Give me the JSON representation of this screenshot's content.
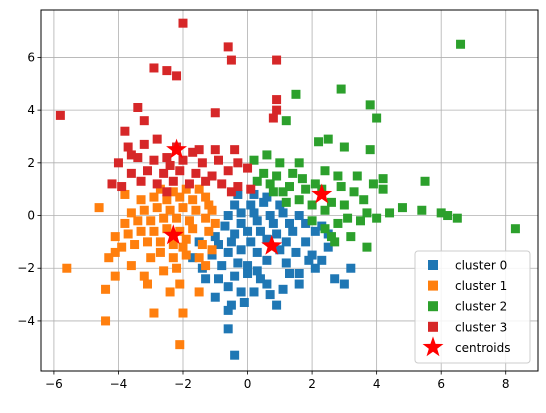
{
  "chart_data": {
    "type": "scatter",
    "xlim": [
      -6.4,
      9.0
    ],
    "ylim": [
      -5.9,
      7.8
    ],
    "x_ticks": [
      -6,
      -4,
      -2,
      0,
      2,
      4,
      6,
      8
    ],
    "y_ticks": [
      -4,
      -2,
      0,
      2,
      4,
      6
    ],
    "grid": true,
    "legend_placement": "lower-right",
    "marker": "square",
    "series": [
      {
        "name": "cluster 0",
        "color": "#1f77b4",
        "points": [
          [
            -0.4,
            -5.3
          ],
          [
            -0.6,
            -4.3
          ],
          [
            -0.6,
            -3.6
          ],
          [
            -0.1,
            -3.3
          ],
          [
            -0.2,
            -2.9
          ],
          [
            0.2,
            -2.9
          ],
          [
            0.7,
            -3.0
          ],
          [
            1.1,
            -2.8
          ],
          [
            0.6,
            -2.6
          ],
          [
            -1.3,
            -2.4
          ],
          [
            -0.9,
            -2.4
          ],
          [
            -0.4,
            -2.3
          ],
          [
            0.0,
            -2.2
          ],
          [
            0.3,
            -2.1
          ],
          [
            1.3,
            -2.2
          ],
          [
            1.6,
            -2.2
          ],
          [
            2.7,
            -2.4
          ],
          [
            3.0,
            -2.6
          ],
          [
            3.2,
            -2.0
          ],
          [
            -0.8,
            -1.9
          ],
          [
            -0.3,
            -1.8
          ],
          [
            0.0,
            -1.9
          ],
          [
            0.6,
            -1.7
          ],
          [
            1.2,
            -1.8
          ],
          [
            1.9,
            -1.7
          ],
          [
            2.3,
            -1.7
          ],
          [
            -1.1,
            -1.5
          ],
          [
            -0.6,
            -1.4
          ],
          [
            -0.2,
            -1.3
          ],
          [
            0.3,
            -1.4
          ],
          [
            1.0,
            -1.3
          ],
          [
            1.5,
            -1.4
          ],
          [
            2.0,
            -1.5
          ],
          [
            -0.9,
            -1.1
          ],
          [
            -0.5,
            -1.0
          ],
          [
            0.1,
            -1.0
          ],
          [
            0.6,
            -0.9
          ],
          [
            1.2,
            -1.0
          ],
          [
            1.8,
            -1.0
          ],
          [
            -1.0,
            -0.8
          ],
          [
            -0.4,
            -0.7
          ],
          [
            0.0,
            -0.6
          ],
          [
            0.4,
            -0.6
          ],
          [
            0.9,
            -0.7
          ],
          [
            1.4,
            -0.6
          ],
          [
            2.1,
            -0.6
          ],
          [
            2.5,
            -0.7
          ],
          [
            -0.7,
            -0.4
          ],
          [
            -0.2,
            -0.3
          ],
          [
            0.3,
            -0.2
          ],
          [
            0.8,
            -0.3
          ],
          [
            1.3,
            -0.3
          ],
          [
            1.8,
            -0.3
          ],
          [
            2.3,
            -0.4
          ],
          [
            -0.6,
            0.0
          ],
          [
            -0.2,
            0.1
          ],
          [
            0.2,
            0.1
          ],
          [
            0.7,
            0.0
          ],
          [
            1.1,
            0.1
          ],
          [
            1.6,
            0.0
          ],
          [
            -0.4,
            0.4
          ],
          [
            0.1,
            0.4
          ],
          [
            0.5,
            0.5
          ],
          [
            1.0,
            0.4
          ],
          [
            -0.3,
            0.8
          ],
          [
            0.2,
            0.8
          ],
          [
            0.6,
            0.7
          ],
          [
            -1.5,
            -1.0
          ],
          [
            -1.7,
            -1.6
          ],
          [
            -1.4,
            -2.0
          ],
          [
            -1.0,
            -3.1
          ],
          [
            -0.5,
            -3.4
          ],
          [
            0.9,
            -3.4
          ],
          [
            2.1,
            -2.0
          ],
          [
            2.5,
            -1.2
          ],
          [
            1.6,
            -2.6
          ],
          [
            0.4,
            -2.4
          ],
          [
            -0.6,
            -2.7
          ]
        ]
      },
      {
        "name": "cluster 1",
        "color": "#ff7f0e",
        "points": [
          [
            -4.4,
            -4.0
          ],
          [
            -4.4,
            -2.8
          ],
          [
            -5.6,
            -2.0
          ],
          [
            -4.3,
            -1.6
          ],
          [
            -4.6,
            0.3
          ],
          [
            -4.1,
            -2.3
          ],
          [
            -2.9,
            -3.7
          ],
          [
            -2.2,
            -2.0
          ],
          [
            -2.1,
            -2.6
          ],
          [
            -2.1,
            -4.9
          ],
          [
            -2.0,
            -3.7
          ],
          [
            -1.5,
            -2.9
          ],
          [
            -2.6,
            -2.1
          ],
          [
            -3.2,
            -2.3
          ],
          [
            -3.6,
            -1.9
          ],
          [
            -3.0,
            -1.6
          ],
          [
            -2.7,
            -1.4
          ],
          [
            -2.3,
            -1.6
          ],
          [
            -1.9,
            -1.5
          ],
          [
            -1.5,
            -1.6
          ],
          [
            -3.9,
            -1.2
          ],
          [
            -3.5,
            -1.1
          ],
          [
            -3.1,
            -1.0
          ],
          [
            -2.7,
            -1.0
          ],
          [
            -2.3,
            -1.1
          ],
          [
            -1.9,
            -0.9
          ],
          [
            -1.4,
            -1.1
          ],
          [
            -4.1,
            -0.8
          ],
          [
            -3.7,
            -0.7
          ],
          [
            -3.3,
            -0.6
          ],
          [
            -2.9,
            -0.6
          ],
          [
            -2.5,
            -0.5
          ],
          [
            -2.1,
            -0.6
          ],
          [
            -1.7,
            -0.5
          ],
          [
            -1.2,
            -0.6
          ],
          [
            -3.8,
            -0.3
          ],
          [
            -3.4,
            -0.2
          ],
          [
            -3.0,
            -0.2
          ],
          [
            -2.6,
            -0.1
          ],
          [
            -2.2,
            -0.1
          ],
          [
            -1.8,
            -0.2
          ],
          [
            -1.3,
            -0.1
          ],
          [
            -3.6,
            0.1
          ],
          [
            -3.2,
            0.2
          ],
          [
            -2.8,
            0.3
          ],
          [
            -2.4,
            0.2
          ],
          [
            -2.0,
            0.3
          ],
          [
            -1.6,
            0.2
          ],
          [
            -1.1,
            0.2
          ],
          [
            -3.3,
            0.6
          ],
          [
            -2.9,
            0.7
          ],
          [
            -2.5,
            0.6
          ],
          [
            -2.1,
            0.7
          ],
          [
            -1.7,
            0.6
          ],
          [
            -1.3,
            0.7
          ],
          [
            -2.7,
            1.0
          ],
          [
            -2.3,
            0.9
          ],
          [
            -1.9,
            1.0
          ],
          [
            -1.5,
            1.0
          ],
          [
            -1.1,
            -1.3
          ],
          [
            -1.3,
            -1.9
          ],
          [
            -4.1,
            -1.4
          ],
          [
            -1.0,
            -0.3
          ],
          [
            -1.2,
            0.4
          ],
          [
            -3.1,
            -2.6
          ],
          [
            -2.4,
            -2.9
          ],
          [
            -2.0,
            -1.2
          ],
          [
            -3.8,
            0.8
          ]
        ]
      },
      {
        "name": "cluster 2",
        "color": "#2ca02c",
        "points": [
          [
            6.6,
            6.5
          ],
          [
            8.3,
            -0.5
          ],
          [
            6.0,
            0.1
          ],
          [
            6.2,
            0.0
          ],
          [
            6.5,
            -0.1
          ],
          [
            5.4,
            0.2
          ],
          [
            5.5,
            1.3
          ],
          [
            4.4,
            0.1
          ],
          [
            3.8,
            4.2
          ],
          [
            4.0,
            3.7
          ],
          [
            2.9,
            4.8
          ],
          [
            1.5,
            4.6
          ],
          [
            1.2,
            3.6
          ],
          [
            2.2,
            2.8
          ],
          [
            2.5,
            2.9
          ],
          [
            3.0,
            2.6
          ],
          [
            3.8,
            2.5
          ],
          [
            3.4,
            1.5
          ],
          [
            3.9,
            1.2
          ],
          [
            4.2,
            1.4
          ],
          [
            4.2,
            1.0
          ],
          [
            4.8,
            0.3
          ],
          [
            3.7,
            0.1
          ],
          [
            4.0,
            -0.1
          ],
          [
            3.2,
            -0.8
          ],
          [
            3.7,
            -1.2
          ],
          [
            2.7,
            -1.0
          ],
          [
            3.1,
            -0.1
          ],
          [
            2.6,
            0.5
          ],
          [
            2.9,
            1.1
          ],
          [
            3.3,
            0.9
          ],
          [
            2.1,
            1.2
          ],
          [
            1.7,
            1.4
          ],
          [
            1.3,
            1.1
          ],
          [
            0.9,
            1.5
          ],
          [
            0.5,
            1.6
          ],
          [
            0.2,
            2.1
          ],
          [
            0.6,
            2.3
          ],
          [
            1.0,
            2.0
          ],
          [
            1.6,
            2.0
          ],
          [
            2.4,
            1.7
          ],
          [
            2.8,
            1.5
          ],
          [
            3.6,
            0.6
          ],
          [
            2.4,
            0.2
          ],
          [
            2.0,
            0.4
          ],
          [
            1.6,
            0.6
          ],
          [
            1.2,
            0.5
          ],
          [
            0.8,
            0.9
          ],
          [
            2.0,
            -0.2
          ],
          [
            2.4,
            -0.5
          ],
          [
            2.8,
            -0.3
          ],
          [
            1.8,
            1.0
          ],
          [
            2.3,
            1.0
          ],
          [
            1.4,
            1.6
          ],
          [
            0.3,
            1.3
          ],
          [
            0.7,
            1.2
          ],
          [
            3.5,
            -0.2
          ],
          [
            3.0,
            0.4
          ],
          [
            2.6,
            -0.8
          ],
          [
            1.1,
            0.9
          ]
        ]
      },
      {
        "name": "cluster 3",
        "color": "#d62728",
        "points": [
          [
            -5.8,
            3.8
          ],
          [
            -2.0,
            7.3
          ],
          [
            -0.6,
            6.4
          ],
          [
            -0.5,
            5.9
          ],
          [
            0.9,
            5.9
          ],
          [
            -2.9,
            5.6
          ],
          [
            -2.5,
            5.5
          ],
          [
            -2.2,
            5.3
          ],
          [
            -3.4,
            4.1
          ],
          [
            -1.0,
            3.9
          ],
          [
            0.9,
            4.4
          ],
          [
            0.9,
            4.0
          ],
          [
            0.8,
            3.7
          ],
          [
            -3.8,
            3.2
          ],
          [
            -3.2,
            3.6
          ],
          [
            -3.7,
            2.6
          ],
          [
            -3.2,
            2.7
          ],
          [
            -2.8,
            2.9
          ],
          [
            -2.2,
            2.6
          ],
          [
            -1.7,
            2.4
          ],
          [
            -1.0,
            2.5
          ],
          [
            -0.4,
            2.5
          ],
          [
            -4.0,
            2.0
          ],
          [
            -3.4,
            2.2
          ],
          [
            -2.9,
            2.1
          ],
          [
            -2.5,
            2.2
          ],
          [
            -2.0,
            2.1
          ],
          [
            -1.4,
            2.0
          ],
          [
            -0.9,
            2.1
          ],
          [
            -0.3,
            2.0
          ],
          [
            -3.6,
            1.6
          ],
          [
            -3.1,
            1.7
          ],
          [
            -2.6,
            1.6
          ],
          [
            -2.1,
            1.7
          ],
          [
            -1.6,
            1.6
          ],
          [
            -1.1,
            1.5
          ],
          [
            -0.6,
            1.7
          ],
          [
            -3.3,
            1.3
          ],
          [
            -2.8,
            1.2
          ],
          [
            -2.3,
            1.3
          ],
          [
            -1.8,
            1.2
          ],
          [
            -1.3,
            1.3
          ],
          [
            -0.8,
            1.2
          ],
          [
            -0.3,
            1.1
          ],
          [
            -4.2,
            1.2
          ],
          [
            -0.5,
            0.9
          ],
          [
            0.1,
            1.0
          ],
          [
            -3.9,
            1.1
          ],
          [
            -2.5,
            0.9
          ],
          [
            0.0,
            1.8
          ],
          [
            -1.5,
            2.5
          ],
          [
            -2.4,
            1.9
          ],
          [
            -3.6,
            2.3
          ]
        ]
      },
      {
        "name": "centroids",
        "color": "#ff0000",
        "marker": "star",
        "points": [
          [
            -2.3,
            -0.75
          ],
          [
            0.75,
            -1.15
          ],
          [
            2.3,
            0.8
          ],
          [
            -2.2,
            2.5
          ]
        ]
      }
    ]
  }
}
